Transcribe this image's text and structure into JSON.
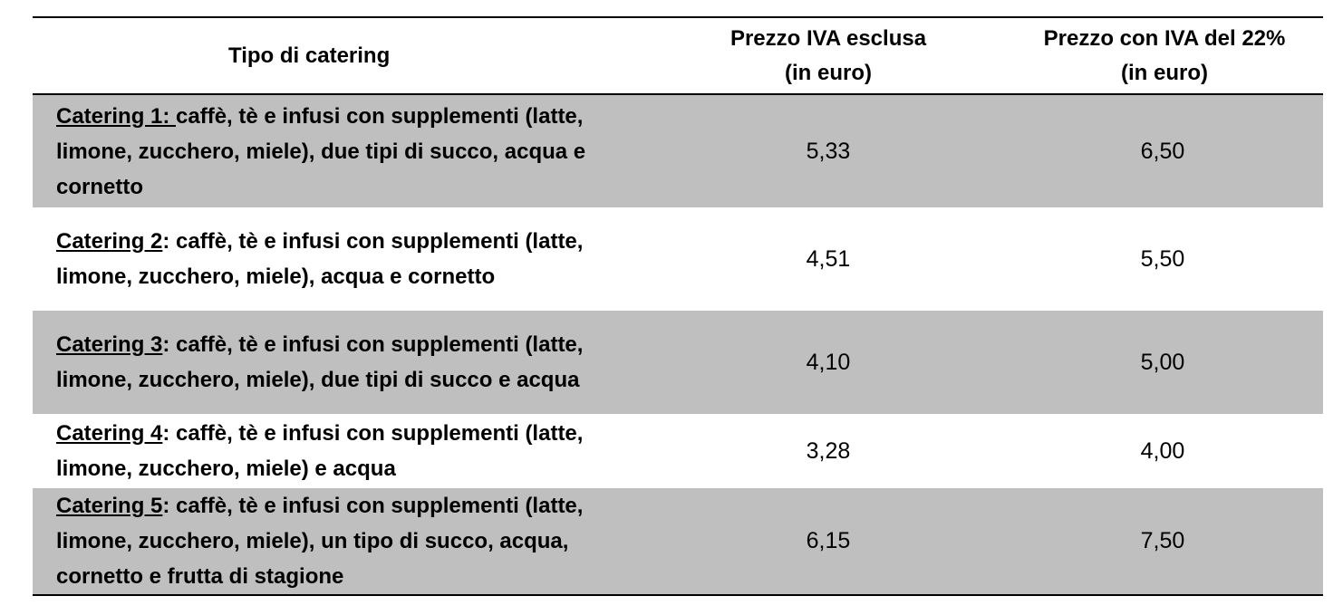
{
  "table": {
    "header": {
      "type_label": "Tipo di catering",
      "price_excl": [
        "Prezzo IVA esclusa",
        "(in euro)"
      ],
      "price_incl": [
        "Prezzo con IVA del 22%",
        "(in euro)"
      ]
    },
    "rows": [
      {
        "name": "Catering 1: ",
        "description": "caffè, tè e infusi con supplementi (latte, limone, zucchero, miele), due tipi di succo, acqua e cornetto",
        "price_excl": "5,33",
        "price_incl": "6,50"
      },
      {
        "name": "Catering 2",
        "description": ": caffè, tè e infusi con supplementi (latte, limone, zucchero, miele), acqua e cornetto",
        "price_excl": "4,51",
        "price_incl": "5,50"
      },
      {
        "name": "Catering 3",
        "description": ": caffè, tè e infusi con supplementi (latte, limone, zucchero, miele), due tipi di succo e acqua",
        "price_excl": "4,10",
        "price_incl": "5,00"
      },
      {
        "name": "Catering 4",
        "description": ": caffè, tè e infusi con supplementi (latte, limone, zucchero, miele) e acqua",
        "price_excl": "3,28",
        "price_incl": "4,00"
      },
      {
        "name": "Catering 5",
        "description": ": caffè, tè e infusi con supplementi (latte, limone, zucchero, miele), un tipo di succo, acqua, cornetto e frutta di stagione",
        "price_excl": "6,15",
        "price_incl": "7,50"
      }
    ]
  }
}
